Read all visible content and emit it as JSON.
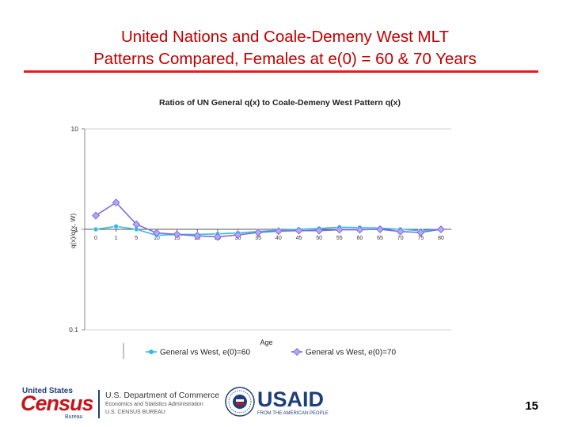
{
  "slide": {
    "title_line1": "United Nations and Coale-Demeny West MLT",
    "title_line2": "Patterns Compared, Females at e(0) = 60 & 70 Years",
    "page_number": "15"
  },
  "footer": {
    "census_top": "United States",
    "census_word": "Census",
    "census_bureau": "Bureau",
    "doc_line1": "U.S. Department of Commerce",
    "doc_line2": "Economics and Statistics Administration",
    "doc_line3": "U.S. CENSUS BUREAU",
    "usaid_word": "USAID",
    "usaid_sub": "FROM THE AMERICAN PEOPLE"
  },
  "chart_data": {
    "type": "line",
    "title": "Ratios of UN General q(x) to Coale-Demeny West Pattern q(x)",
    "xlabel": "Age",
    "ylabel": "q(x)/q(x, W)",
    "yscale": "log",
    "ylim": [
      0.1,
      10
    ],
    "yticks": [
      10,
      1,
      0.1
    ],
    "ytick_labels": [
      "10",
      "1",
      "0.1"
    ],
    "categories": [
      "0",
      "1",
      "5",
      "10",
      "15",
      "20",
      "25",
      "30",
      "35",
      "40",
      "45",
      "50",
      "55",
      "60",
      "65",
      "70",
      "75",
      "80"
    ],
    "grid": true,
    "legend_position": "bottom",
    "series": [
      {
        "name": "General vs West, e(0)=60",
        "color": "#33bbe6",
        "values": [
          1.0,
          1.07,
          1.0,
          0.87,
          0.89,
          0.89,
          0.9,
          0.92,
          0.95,
          0.98,
          1.0,
          1.02,
          1.05,
          1.04,
          1.03,
          1.0,
          0.97,
          1.0
        ]
      },
      {
        "name": "General vs West, e(0)=70",
        "color": "#7d6be0",
        "values": [
          1.37,
          1.85,
          1.12,
          0.92,
          0.89,
          0.86,
          0.84,
          0.88,
          0.93,
          0.96,
          0.97,
          0.97,
          0.99,
          0.99,
          1.0,
          0.95,
          0.93,
          1.0
        ]
      }
    ]
  }
}
